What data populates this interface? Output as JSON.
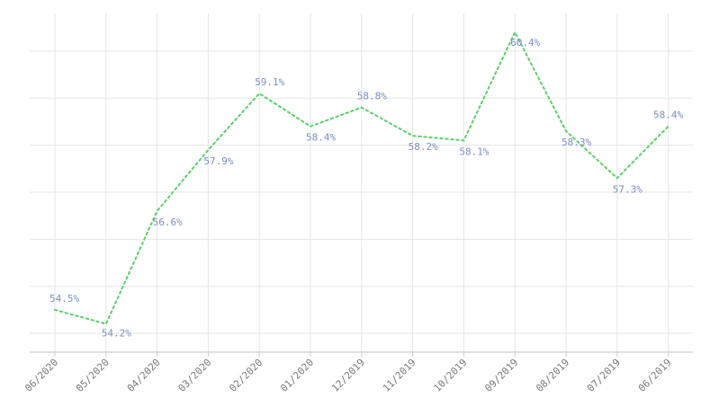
{
  "chart_data": {
    "type": "line",
    "title": "",
    "xlabel": "",
    "ylabel": "",
    "categories": [
      "06/2020",
      "05/2020",
      "04/2020",
      "03/2020",
      "02/2020",
      "01/2020",
      "12/2019",
      "11/2019",
      "10/2019",
      "09/2019",
      "08/2019",
      "07/2019",
      "06/2019"
    ],
    "series": [
      {
        "values": [
          54.5,
          54.2,
          56.6,
          57.9,
          59.1,
          58.4,
          58.8,
          58.2,
          58.1,
          60.4,
          58.3,
          57.3,
          58.4
        ],
        "labels": [
          "54.5%",
          "54.2%",
          "56.6%",
          "57.9%",
          "59.1%",
          "58.4%",
          "58.8%",
          "58.2%",
          "58.1%",
          "60.4%",
          "58.3%",
          "57.3%",
          "58.4%"
        ],
        "color": "#5ed06a"
      }
    ],
    "ylim": [
      53.6,
      60.8
    ],
    "ytick_step": 1,
    "grid": true,
    "legend": "none",
    "label_color": "#7b8fc4"
  }
}
